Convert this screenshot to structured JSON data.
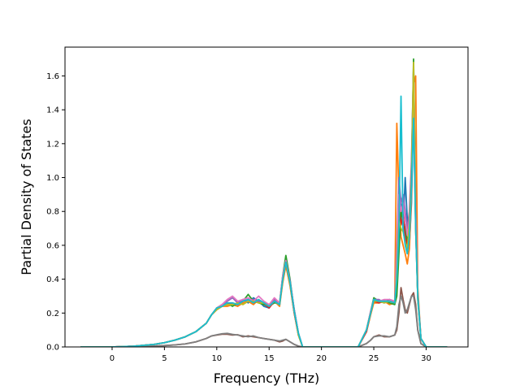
{
  "chart_data": {
    "type": "line",
    "xlabel": "Frequency (THz)",
    "ylabel": "Partial Density of States",
    "xlim": [
      -4.5,
      34.0
    ],
    "ylim": [
      0.0,
      1.77
    ],
    "xticks": [
      0,
      5,
      10,
      15,
      20,
      25,
      30
    ],
    "yticks": [
      0.0,
      0.2,
      0.4,
      0.6,
      0.8,
      1.0,
      1.2,
      1.4,
      1.6
    ],
    "ytick_labels": [
      "0.0",
      "0.2",
      "0.4",
      "0.6",
      "0.8",
      "1.0",
      "1.2",
      "1.4",
      "1.6"
    ],
    "grid": false,
    "series": [
      {
        "color": "#1f77b4",
        "x": [
          -3,
          0,
          2,
          4,
          5,
          6,
          7,
          8,
          9,
          9.5,
          10,
          10.5,
          11,
          11.5,
          12,
          12.5,
          13,
          13.5,
          14,
          14.5,
          15,
          15.5,
          16,
          16.3,
          16.6,
          17,
          17.4,
          17.8,
          18.2,
          20,
          23.5,
          24.3,
          24.7,
          25,
          25.5,
          26,
          26.5,
          27,
          27.2,
          27.4,
          27.6,
          27.8,
          28,
          28.2,
          28.4,
          28.6,
          28.8,
          29,
          29.2,
          29.5,
          30,
          32
        ],
        "y": [
          0,
          0,
          0.004,
          0.015,
          0.025,
          0.04,
          0.06,
          0.09,
          0.14,
          0.19,
          0.23,
          0.24,
          0.25,
          0.25,
          0.25,
          0.28,
          0.26,
          0.29,
          0.27,
          0.24,
          0.23,
          0.28,
          0.25,
          0.4,
          0.52,
          0.38,
          0.22,
          0.08,
          0,
          0,
          0,
          0.1,
          0.2,
          0.28,
          0.27,
          0.26,
          0.28,
          0.27,
          0.35,
          0.6,
          0.85,
          0.7,
          1.0,
          0.75,
          0.6,
          0.85,
          1.4,
          0.7,
          0.3,
          0.05,
          0,
          0
        ]
      },
      {
        "color": "#ff7f0e",
        "x": [
          -3,
          0,
          2,
          4,
          5,
          6,
          7,
          8,
          9,
          9.5,
          10,
          10.5,
          11,
          11.5,
          12,
          12.5,
          13,
          13.5,
          14,
          14.5,
          15,
          15.5,
          16,
          16.3,
          16.6,
          17,
          17.4,
          17.8,
          18.2,
          20,
          23.5,
          24.3,
          24.7,
          25,
          25.5,
          26,
          26.5,
          27,
          27.2,
          27.4,
          27.6,
          27.8,
          28,
          28.2,
          28.4,
          28.6,
          28.8,
          29,
          29.2,
          29.5,
          30,
          32
        ],
        "y": [
          0,
          0,
          0.004,
          0.015,
          0.025,
          0.04,
          0.06,
          0.09,
          0.14,
          0.19,
          0.22,
          0.24,
          0.24,
          0.25,
          0.24,
          0.26,
          0.27,
          0.25,
          0.28,
          0.25,
          0.24,
          0.27,
          0.24,
          0.38,
          0.48,
          0.36,
          0.2,
          0.07,
          0,
          0,
          0,
          0.09,
          0.19,
          0.26,
          0.26,
          0.27,
          0.25,
          0.26,
          1.32,
          0.9,
          0.65,
          0.6,
          0.55,
          0.49,
          0.58,
          0.9,
          1.55,
          1.6,
          0.35,
          0.05,
          0,
          0
        ]
      },
      {
        "color": "#2ca02c",
        "x": [
          -3,
          0,
          2,
          4,
          5,
          6,
          7,
          8,
          9,
          9.5,
          10,
          10.5,
          11,
          11.5,
          12,
          12.5,
          13,
          13.5,
          14,
          14.5,
          15,
          15.5,
          16,
          16.3,
          16.6,
          17,
          17.4,
          17.8,
          18.2,
          20,
          23.5,
          24.3,
          24.7,
          25,
          25.5,
          26,
          26.5,
          27,
          27.2,
          27.4,
          27.6,
          27.8,
          28,
          28.2,
          28.4,
          28.6,
          28.8,
          29,
          29.2,
          29.5,
          30,
          32
        ],
        "y": [
          0,
          0,
          0.004,
          0.015,
          0.025,
          0.04,
          0.06,
          0.09,
          0.14,
          0.19,
          0.23,
          0.25,
          0.26,
          0.24,
          0.26,
          0.27,
          0.31,
          0.27,
          0.26,
          0.25,
          0.24,
          0.26,
          0.26,
          0.42,
          0.54,
          0.4,
          0.21,
          0.08,
          0,
          0,
          0,
          0.1,
          0.21,
          0.29,
          0.27,
          0.27,
          0.26,
          0.25,
          0.3,
          0.55,
          0.8,
          0.75,
          0.7,
          0.62,
          0.7,
          1.05,
          1.7,
          0.8,
          0.28,
          0.05,
          0,
          0
        ]
      },
      {
        "color": "#d62728",
        "x": [
          -3,
          0,
          2,
          4,
          5,
          6,
          7,
          8,
          9,
          9.5,
          10,
          10.5,
          11,
          11.5,
          12,
          12.5,
          13,
          13.5,
          14,
          14.5,
          15,
          15.5,
          16,
          16.3,
          16.6,
          17,
          17.4,
          17.8,
          18.2,
          20,
          23.5,
          24.3,
          24.7,
          25,
          25.5,
          26,
          26.5,
          27,
          27.2,
          27.4,
          27.6,
          27.8,
          28,
          28.2,
          28.4,
          28.6,
          28.8,
          29,
          29.2,
          29.5,
          30,
          32
        ],
        "y": [
          0,
          0,
          0.004,
          0.015,
          0.025,
          0.04,
          0.06,
          0.09,
          0.14,
          0.19,
          0.22,
          0.24,
          0.25,
          0.26,
          0.25,
          0.27,
          0.28,
          0.26,
          0.27,
          0.26,
          0.23,
          0.27,
          0.25,
          0.39,
          0.5,
          0.37,
          0.2,
          0.07,
          0,
          0,
          0,
          0.09,
          0.2,
          0.27,
          0.26,
          0.27,
          0.27,
          0.26,
          0.5,
          0.8,
          0.72,
          0.78,
          0.65,
          0.6,
          0.7,
          0.95,
          1.45,
          0.75,
          0.3,
          0.05,
          0,
          0
        ]
      },
      {
        "color": "#9467bd",
        "x": [
          -3,
          0,
          2,
          4,
          5,
          6,
          7,
          8,
          9,
          9.5,
          10,
          10.5,
          11,
          11.5,
          12,
          12.5,
          13,
          13.5,
          14,
          14.5,
          15,
          15.5,
          16,
          16.3,
          16.6,
          17,
          17.4,
          17.8,
          18.2,
          20,
          23.5,
          24.3,
          24.7,
          25,
          25.5,
          26,
          26.5,
          27,
          27.2,
          27.4,
          27.6,
          27.8,
          28,
          28.2,
          28.4,
          28.6,
          28.8,
          29,
          29.2,
          29.5,
          30,
          32
        ],
        "y": [
          0,
          0,
          0.004,
          0.015,
          0.025,
          0.04,
          0.06,
          0.09,
          0.14,
          0.19,
          0.23,
          0.24,
          0.27,
          0.29,
          0.26,
          0.28,
          0.27,
          0.28,
          0.27,
          0.26,
          0.25,
          0.28,
          0.25,
          0.41,
          0.51,
          0.39,
          0.22,
          0.08,
          0,
          0,
          0,
          0.1,
          0.21,
          0.28,
          0.28,
          0.26,
          0.27,
          0.27,
          0.6,
          1.0,
          0.85,
          0.9,
          0.8,
          0.7,
          0.8,
          1.1,
          1.65,
          0.85,
          0.32,
          0.05,
          0,
          0
        ]
      },
      {
        "color": "#8c564b",
        "x": [
          -3,
          0,
          2,
          4,
          5,
          6,
          7,
          8,
          9,
          9.5,
          10,
          10.5,
          11,
          11.5,
          12,
          12.5,
          13,
          13.5,
          14,
          14.5,
          15,
          15.5,
          16,
          16.3,
          16.6,
          17,
          17.4,
          17.8,
          18.2,
          20,
          23.5,
          24.3,
          24.7,
          25,
          25.5,
          26,
          26.5,
          27,
          27.2,
          27.4,
          27.6,
          27.8,
          28,
          28.2,
          28.4,
          28.6,
          28.8,
          29,
          29.2,
          29.5,
          30,
          32
        ],
        "y": [
          0,
          0,
          0.002,
          0.005,
          0.008,
          0.012,
          0.018,
          0.03,
          0.05,
          0.065,
          0.07,
          0.075,
          0.075,
          0.07,
          0.072,
          0.06,
          0.065,
          0.06,
          0.055,
          0.05,
          0.045,
          0.04,
          0.03,
          0.035,
          0.045,
          0.03,
          0.015,
          0.005,
          0,
          0,
          0,
          0.02,
          0.04,
          0.06,
          0.07,
          0.06,
          0.06,
          0.07,
          0.1,
          0.2,
          0.35,
          0.28,
          0.22,
          0.2,
          0.25,
          0.3,
          0.32,
          0.25,
          0.1,
          0.02,
          0,
          0
        ]
      },
      {
        "color": "#e377c2",
        "x": [
          -3,
          0,
          2,
          4,
          5,
          6,
          7,
          8,
          9,
          9.5,
          10,
          10.5,
          11,
          11.5,
          12,
          12.5,
          13,
          13.5,
          14,
          14.5,
          15,
          15.5,
          16,
          16.3,
          16.6,
          17,
          17.4,
          17.8,
          18.2,
          20,
          23.5,
          24.3,
          24.7,
          25,
          25.5,
          26,
          26.5,
          27,
          27.2,
          27.4,
          27.6,
          27.8,
          28,
          28.2,
          28.4,
          28.6,
          28.8,
          29,
          29.2,
          29.5,
          30,
          32
        ],
        "y": [
          0,
          0,
          0.004,
          0.015,
          0.025,
          0.04,
          0.06,
          0.09,
          0.14,
          0.19,
          0.23,
          0.25,
          0.28,
          0.3,
          0.27,
          0.28,
          0.29,
          0.27,
          0.3,
          0.27,
          0.25,
          0.29,
          0.26,
          0.42,
          0.51,
          0.38,
          0.21,
          0.08,
          0,
          0,
          0,
          0.1,
          0.21,
          0.28,
          0.27,
          0.28,
          0.28,
          0.27,
          0.55,
          0.9,
          0.8,
          0.85,
          0.75,
          0.66,
          0.75,
          1.0,
          1.5,
          0.8,
          0.3,
          0.05,
          0,
          0
        ]
      },
      {
        "color": "#7f7f7f",
        "x": [
          -3,
          0,
          2,
          4,
          5,
          6,
          7,
          8,
          9,
          9.5,
          10,
          10.5,
          11,
          11.5,
          12,
          12.5,
          13,
          13.5,
          14,
          14.5,
          15,
          15.5,
          16,
          16.3,
          16.6,
          17,
          17.4,
          17.8,
          18.2,
          20,
          23.5,
          24.3,
          24.7,
          25,
          25.5,
          26,
          26.5,
          27,
          27.2,
          27.4,
          27.6,
          27.8,
          28,
          28.2,
          28.4,
          28.6,
          28.8,
          29,
          29.2,
          29.5,
          30,
          32
        ],
        "y": [
          0,
          0,
          0.002,
          0.005,
          0.008,
          0.012,
          0.018,
          0.03,
          0.05,
          0.065,
          0.072,
          0.078,
          0.08,
          0.074,
          0.07,
          0.065,
          0.06,
          0.065,
          0.055,
          0.05,
          0.045,
          0.04,
          0.035,
          0.04,
          0.045,
          0.03,
          0.015,
          0.005,
          0,
          0,
          0,
          0.02,
          0.04,
          0.06,
          0.065,
          0.065,
          0.06,
          0.07,
          0.12,
          0.25,
          0.3,
          0.26,
          0.2,
          0.22,
          0.26,
          0.3,
          0.3,
          0.22,
          0.1,
          0.02,
          0,
          0
        ]
      },
      {
        "color": "#bcbd22",
        "x": [
          -3,
          0,
          2,
          4,
          5,
          6,
          7,
          8,
          9,
          9.5,
          10,
          10.5,
          11,
          11.5,
          12,
          12.5,
          13,
          13.5,
          14,
          14.5,
          15,
          15.5,
          16,
          16.3,
          16.6,
          17,
          17.4,
          17.8,
          18.2,
          20,
          23.5,
          24.3,
          24.7,
          25,
          25.5,
          26,
          26.5,
          27,
          27.2,
          27.4,
          27.6,
          27.8,
          28,
          28.2,
          28.4,
          28.6,
          28.8,
          29,
          29.2,
          29.5,
          30,
          32
        ],
        "y": [
          0,
          0,
          0.004,
          0.015,
          0.025,
          0.04,
          0.06,
          0.09,
          0.14,
          0.19,
          0.22,
          0.24,
          0.25,
          0.25,
          0.26,
          0.25,
          0.27,
          0.27,
          0.26,
          0.26,
          0.24,
          0.27,
          0.25,
          0.39,
          0.5,
          0.37,
          0.21,
          0.07,
          0,
          0,
          0,
          0.1,
          0.2,
          0.27,
          0.27,
          0.26,
          0.27,
          0.26,
          0.45,
          0.75,
          0.7,
          0.68,
          0.62,
          0.58,
          0.72,
          1.0,
          1.68,
          0.7,
          0.3,
          0.05,
          0,
          0
        ]
      },
      {
        "color": "#17becf",
        "x": [
          -3,
          0,
          2,
          4,
          5,
          6,
          7,
          8,
          9,
          9.5,
          10,
          10.5,
          11,
          11.5,
          12,
          12.5,
          13,
          13.5,
          14,
          14.5,
          15,
          15.5,
          16,
          16.3,
          16.6,
          17,
          17.4,
          17.8,
          18.2,
          20,
          23.5,
          24.3,
          24.7,
          25,
          25.5,
          26,
          26.5,
          27,
          27.2,
          27.4,
          27.6,
          27.8,
          28,
          28.2,
          28.4,
          28.6,
          28.8,
          29,
          29.2,
          29.5,
          30,
          32
        ],
        "y": [
          0,
          0,
          0.004,
          0.015,
          0.025,
          0.04,
          0.06,
          0.09,
          0.14,
          0.19,
          0.23,
          0.24,
          0.26,
          0.26,
          0.25,
          0.27,
          0.28,
          0.26,
          0.28,
          0.26,
          0.24,
          0.27,
          0.25,
          0.4,
          0.5,
          0.38,
          0.21,
          0.08,
          0,
          0,
          0,
          0.1,
          0.2,
          0.28,
          0.27,
          0.27,
          0.27,
          0.26,
          0.4,
          0.7,
          1.48,
          0.7,
          0.6,
          0.55,
          0.65,
          0.95,
          1.35,
          0.7,
          0.3,
          0.05,
          0,
          0
        ]
      }
    ]
  }
}
